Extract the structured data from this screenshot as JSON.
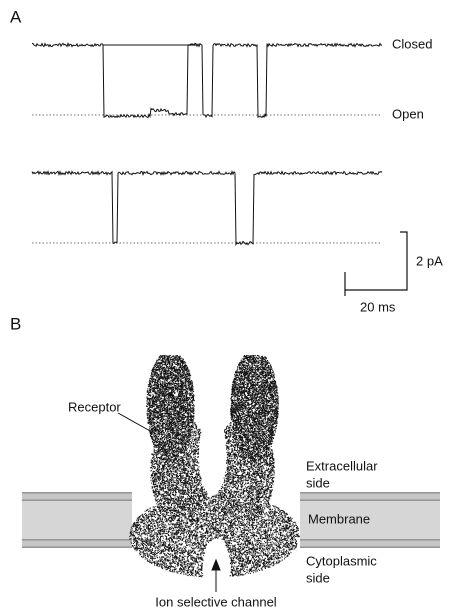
{
  "panel_a": {
    "label": "A",
    "closed_label": "Closed",
    "open_label": "Open",
    "scale_current": "2 pA",
    "scale_time": "20 ms"
  },
  "panel_b": {
    "label": "B",
    "receptor": "Receptor",
    "extracellular": [
      "Extracellular",
      "side"
    ],
    "membrane": "Membrane",
    "cytoplasmic": [
      "Cytoplasmic",
      "side"
    ],
    "channel": "Ion selective channel"
  }
}
